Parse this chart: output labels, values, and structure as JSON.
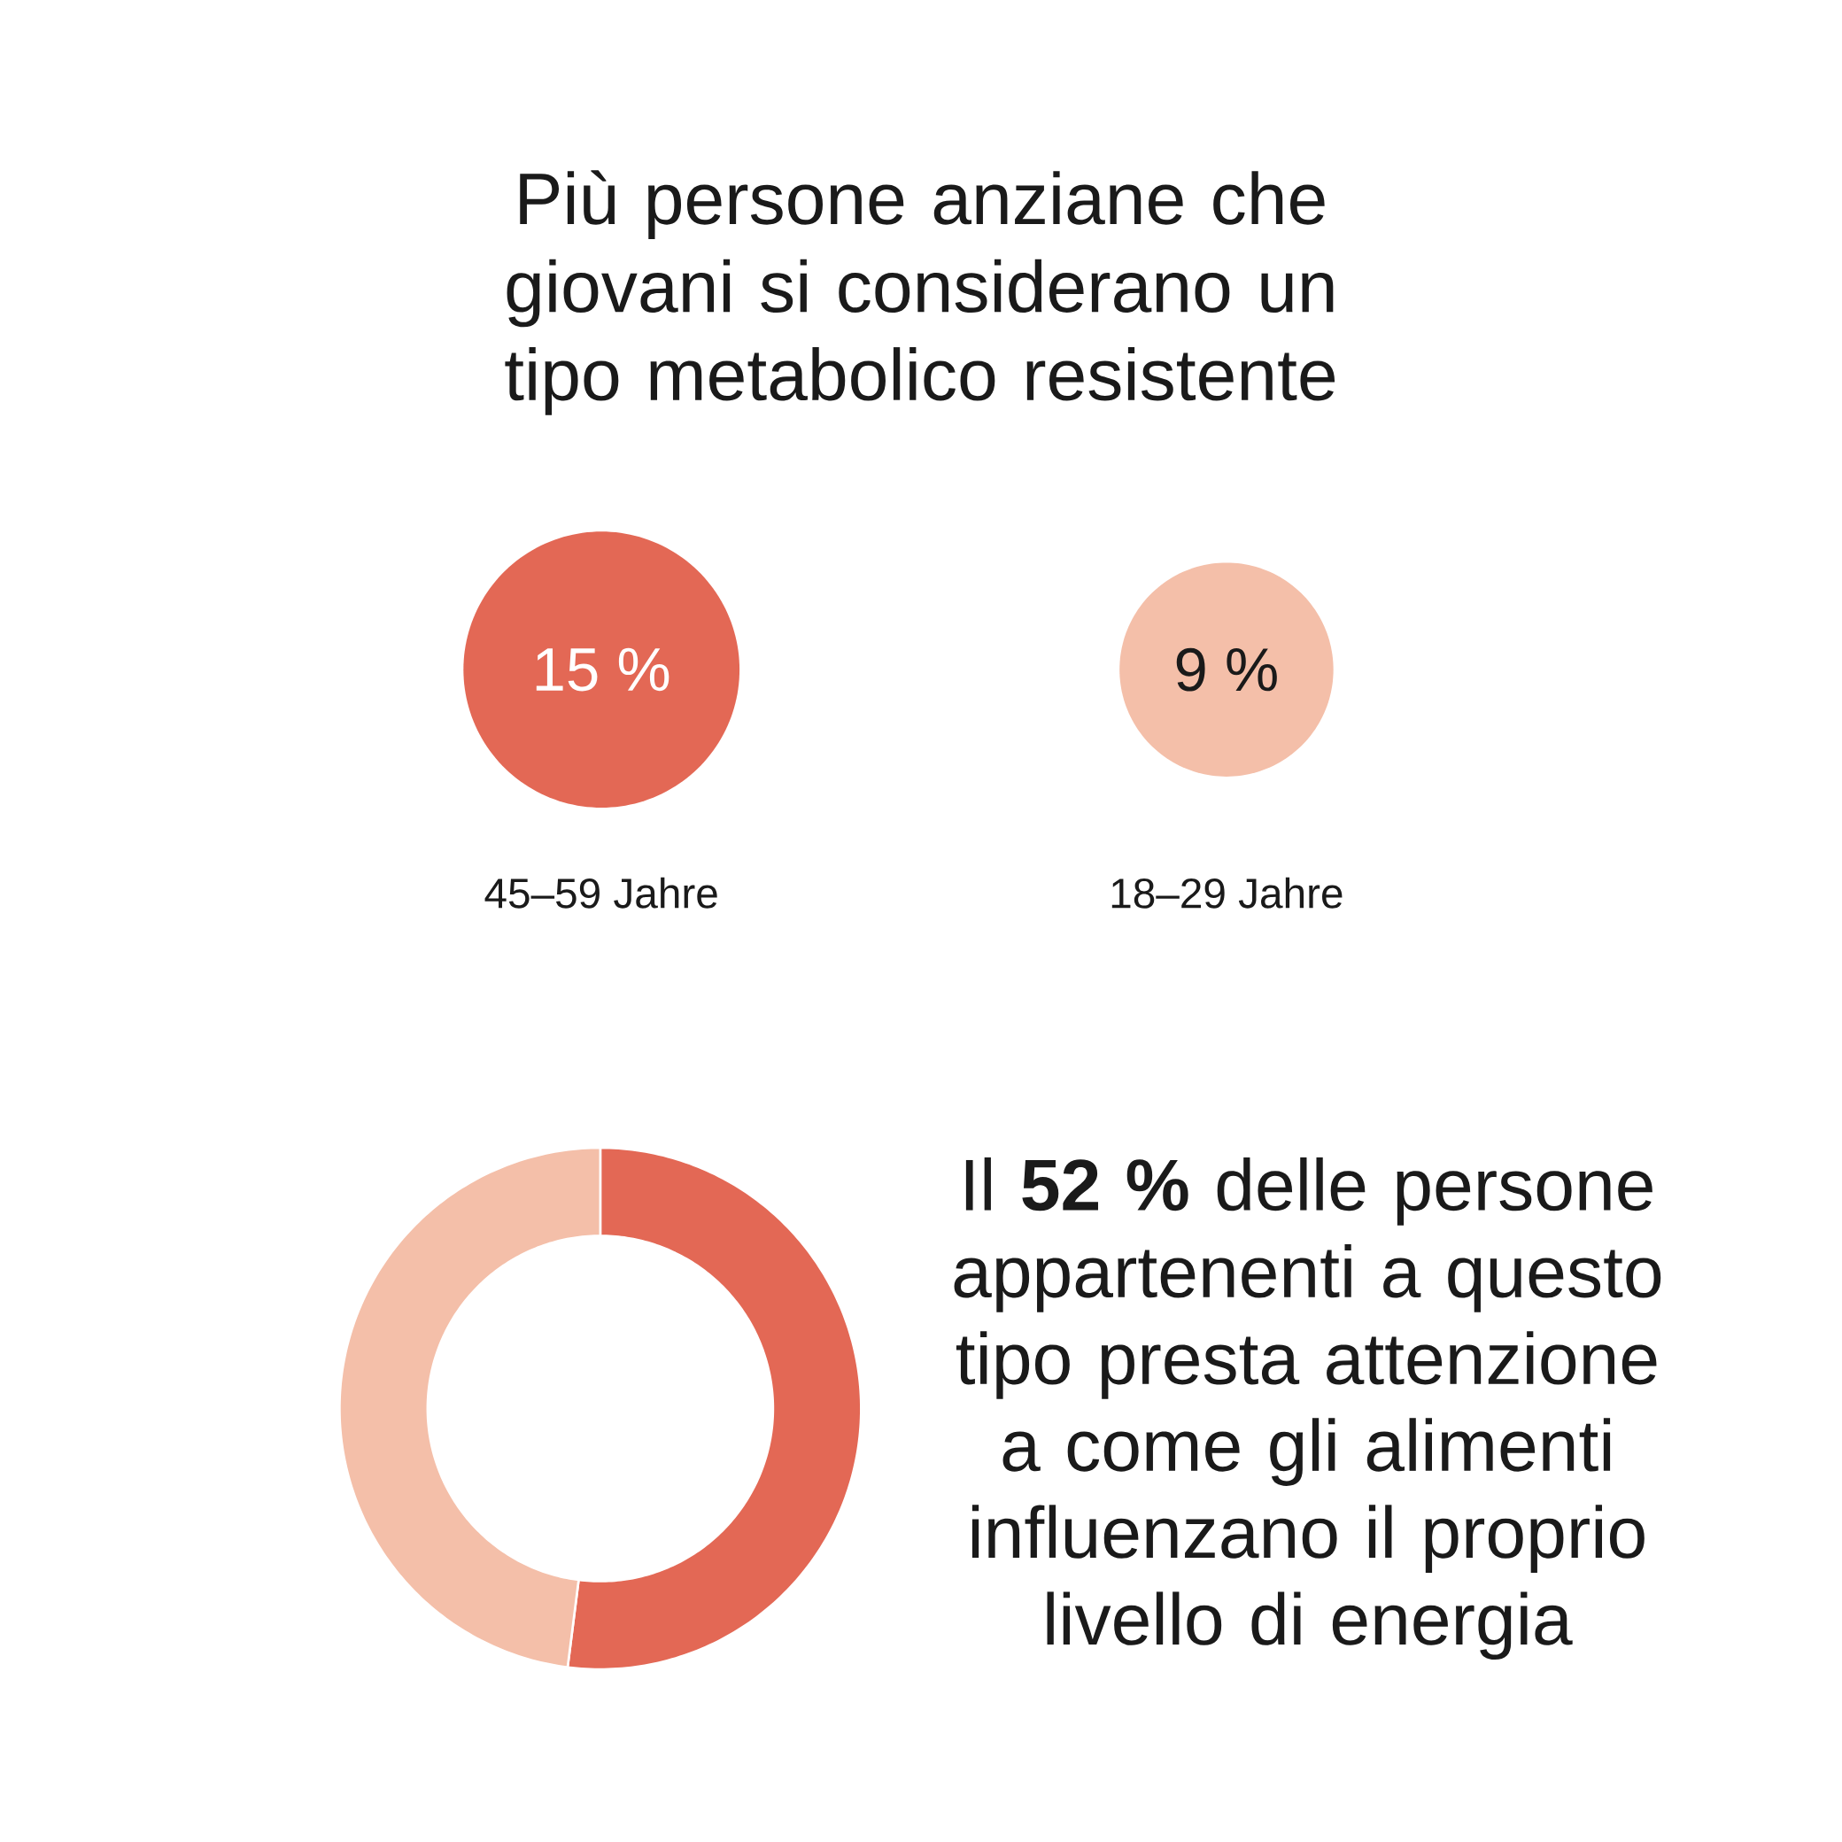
{
  "chart_data": [
    {
      "type": "other",
      "title": "Più persone anziane che giovani si considerano un tipo metabolico resistente",
      "categories": [
        "45–59 Jahre",
        "18–29 Jahre"
      ],
      "values": [
        15,
        9
      ],
      "colors": [
        "#e36855",
        "#f4bfa9"
      ],
      "value_labels": [
        "15 %",
        "9 %"
      ]
    },
    {
      "type": "donut",
      "categories": [
        null,
        null
      ],
      "values": [
        52,
        48
      ],
      "colors": [
        "#e36855",
        "#f4bfa9"
      ],
      "annotations": [
        "Il **52 %** delle persone appartenenti a questo tipo presta attenzione a come gli alimenti influenzano il proprio livello di energia"
      ]
    }
  ]
}
